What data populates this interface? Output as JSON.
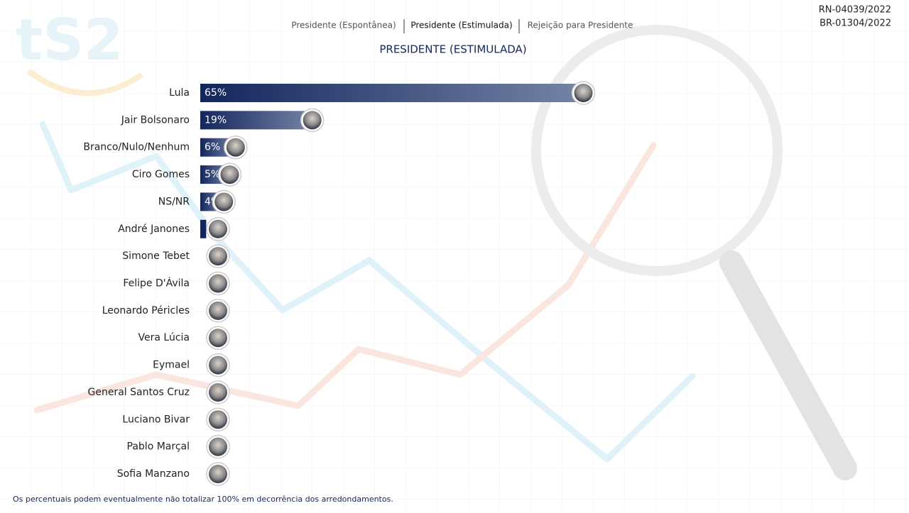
{
  "logo": "tS2",
  "tabs": [
    "Presidente (Espontânea)",
    "Presidente (Estimulada)",
    "Rejeição para Presidente"
  ],
  "registrations": [
    "RN-04039/2022",
    "BR-01304/2022"
  ],
  "footnote": "Os percentuais podem eventualmente não totalizar 100% em decorrência dos arredondamentos.",
  "chart_data": {
    "type": "hbar",
    "title": "PRESIDENTE (ESTIMULADA)",
    "color": "#13265c",
    "categories": [
      "Lula",
      "Jair Bolsonaro",
      "Branco/Nulo/Nenhum",
      "Ciro Gomes",
      "NS/NR",
      "André Janones",
      "Simone Tebet",
      "Felipe D'Ávila",
      "Leonardo Péricles",
      "Vera Lúcia",
      "Eymael",
      "General Santos Cruz",
      "Luciano Bivar",
      "Pablo Marçal",
      "Sofia Manzano"
    ],
    "values": [
      65,
      19,
      6,
      5,
      4,
      1,
      0,
      0,
      0,
      0,
      0,
      0,
      0,
      0,
      0
    ],
    "value_labels": [
      "65%",
      "19%",
      "6%",
      "5%",
      "4%",
      null,
      null,
      null,
      null,
      null,
      null,
      null,
      null,
      null,
      null
    ]
  }
}
